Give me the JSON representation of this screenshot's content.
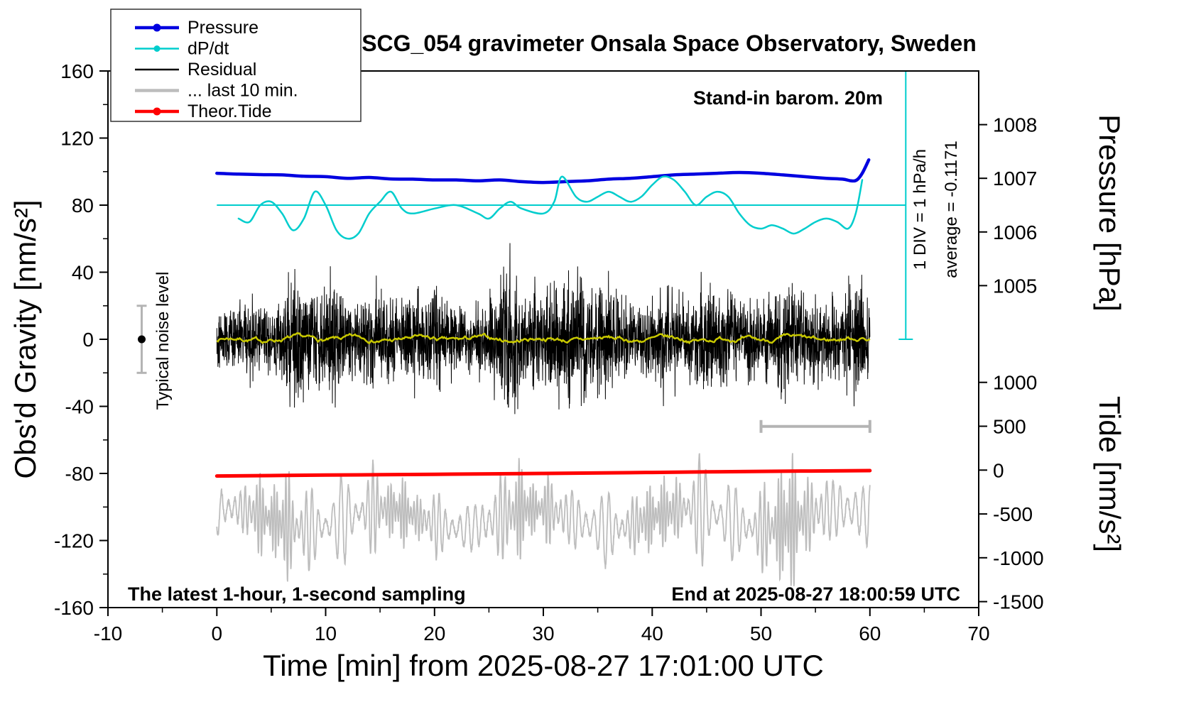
{
  "title": "SCG_054 gravimeter Onsala Space Observatory, Sweden",
  "annotations": {
    "barometer": "Stand-in barom. 20m",
    "div_scale": "1 DIV = 1 hPa/h",
    "average": "average = -0.1171",
    "noise_level": "Typical noise level",
    "sampling": "The latest 1-hour, 1-second sampling",
    "end_time": "End at 2025-08-27 18:00:59 UTC"
  },
  "legend": {
    "items": [
      {
        "label": "Pressure",
        "color": "#0000e0",
        "dot": true
      },
      {
        "label": "dP/dt",
        "color": "#00cdcd",
        "dot": true
      },
      {
        "label": "Residual",
        "color": "#000000",
        "dot": false
      },
      {
        "label": "... last 10 min.",
        "color": "#bdbdbd",
        "dot": false
      },
      {
        "label": "Theor.Tide",
        "color": "#ff0000",
        "dot": true
      }
    ]
  },
  "chart_data": {
    "type": "line",
    "title": "SCG_054 gravimeter Onsala Space Observatory, Sweden",
    "axes": {
      "x": {
        "label": "Time [min] from 2025-08-27 17:01:00 UTC",
        "min": -10,
        "max": 70,
        "ticks": [
          -10,
          0,
          10,
          20,
          30,
          40,
          50,
          60,
          70
        ],
        "minor_step": 5
      },
      "gravity": {
        "label": "Obs'd Gravity [nm/s²]",
        "min": -160,
        "max": 160,
        "ticks": [
          -160,
          -120,
          -80,
          -40,
          0,
          40,
          80,
          120,
          160
        ],
        "minor_step": 20
      },
      "pressure": {
        "label": "Pressure [hPa]",
        "ticks": [
          1005,
          1006,
          1007,
          1008
        ],
        "gravity_per_unit": 32,
        "unit_at_gravity_zero": 1004
      },
      "tide": {
        "label": "Tide [nm/s²]",
        "ticks": [
          1000,
          500,
          0,
          -500,
          -1000,
          -1500
        ],
        "gravity_per_unit": 0.0523,
        "gravity_at_zero": -78
      },
      "dpdt": {
        "average_hpa_per_h": -0.1171,
        "gravity_per_unit": 32,
        "gravity_at_zero": 83.747,
        "reference_gravity": 80
      }
    },
    "series": [
      {
        "name": "Pressure",
        "axis": "pressure",
        "color": "#0000e0",
        "width": 4.5,
        "smooth": true,
        "x": [
          0,
          2,
          4,
          6,
          8,
          10,
          12,
          14,
          16,
          18,
          20,
          22,
          24,
          26,
          28,
          30,
          32,
          34,
          36,
          38,
          40,
          42,
          44,
          46,
          48,
          50,
          52,
          54,
          56,
          57.5,
          58.3,
          58.8,
          59.3,
          59.9
        ],
        "y": [
          1007.094,
          1007.078,
          1007.069,
          1007.063,
          1007.038,
          1007.031,
          1007.0,
          1007.016,
          1006.988,
          1006.984,
          1006.969,
          1006.969,
          1006.953,
          1006.969,
          1006.938,
          1006.922,
          1006.938,
          1006.953,
          1006.984,
          1007.0,
          1007.031,
          1007.063,
          1007.078,
          1007.094,
          1007.109,
          1007.094,
          1007.063,
          1007.031,
          1007.0,
          1006.984,
          1006.953,
          1006.969,
          1007.094,
          1007.344
        ]
      },
      {
        "name": "dP/dt",
        "axis": "dpdt",
        "color": "#00cdcd",
        "width": 2.5,
        "smooth": true,
        "x": [
          2,
          3,
          4,
          5,
          6,
          7,
          8,
          9,
          10,
          11,
          12,
          13,
          14,
          15,
          16,
          17,
          18,
          20,
          22,
          24,
          25,
          26,
          27,
          28,
          30,
          31,
          31.7,
          33,
          34,
          35,
          36,
          37,
          38,
          39,
          40,
          41,
          42,
          43,
          44,
          45,
          46,
          47,
          48,
          49,
          50,
          51,
          52,
          53,
          54,
          55,
          56,
          57,
          58,
          58.7,
          59.3
        ],
        "y": [
          -0.367,
          -0.43,
          -0.117,
          -0.055,
          -0.273,
          -0.586,
          -0.367,
          0.133,
          -0.117,
          -0.586,
          -0.742,
          -0.648,
          -0.273,
          -0.055,
          0.133,
          -0.18,
          -0.273,
          -0.18,
          -0.117,
          -0.273,
          -0.367,
          -0.18,
          -0.055,
          -0.18,
          -0.273,
          -0.055,
          0.414,
          0.039,
          -0.055,
          0.039,
          0.133,
          0.039,
          -0.055,
          0.039,
          0.258,
          0.414,
          0.352,
          0.133,
          -0.117,
          0.039,
          0.133,
          0.039,
          -0.273,
          -0.492,
          -0.555,
          -0.492,
          -0.555,
          -0.648,
          -0.555,
          -0.43,
          -0.367,
          -0.43,
          -0.555,
          -0.273,
          0.352
        ]
      },
      {
        "name": "Residual",
        "axis": "gravity",
        "color": "#000000",
        "width": 1,
        "render": "noise",
        "seed": 42,
        "center": 0,
        "envelope_by_minute": [
          25,
          25,
          28,
          35,
          30,
          26,
          45,
          60,
          40,
          35,
          45,
          52,
          30,
          35,
          42,
          45,
          35,
          30,
          40,
          35,
          45,
          35,
          30,
          26,
          30,
          35,
          45,
          65,
          40,
          35,
          40,
          45,
          60,
          50,
          55,
          42,
          48,
          36,
          30,
          30,
          35,
          45,
          40,
          32,
          42,
          45,
          40,
          35,
          30,
          35,
          32,
          36,
          48,
          36,
          40,
          36,
          30,
          36,
          42,
          55,
          40
        ]
      },
      {
        "name": "Residual filtered",
        "axis": "gravity",
        "color": "#c8c800",
        "width": 2.5,
        "render": "smooth_noise",
        "seed": 7,
        "center": 0,
        "amplitude": 3
      },
      {
        "name": "... last 10 min.",
        "axis": "gravity",
        "color": "#bdbdbd",
        "width": 1.8,
        "render": "oscillation",
        "seed": 13,
        "center": -107,
        "period_min": 0.6,
        "envelope_by_minute": [
          22,
          20,
          18,
          25,
          30,
          28,
          35,
          38,
          30,
          26,
          24,
          30,
          26,
          22,
          28,
          30,
          26,
          22,
          20,
          22,
          24,
          22,
          20,
          18,
          22,
          26,
          38,
          42,
          30,
          24,
          22,
          26,
          25,
          24,
          26,
          28,
          25,
          22,
          20,
          24,
          30,
          26,
          22,
          24,
          32,
          35,
          30,
          28,
          24,
          22,
          26,
          40,
          48,
          45,
          35,
          28,
          25,
          30,
          28,
          26,
          28
        ]
      },
      {
        "name": "Theor.Tide",
        "axis": "tide",
        "color": "#ff0000",
        "width": 5,
        "smooth": true,
        "x": [
          0,
          10,
          20,
          30,
          40,
          50,
          60
        ],
        "y": [
          -67,
          -57,
          -48,
          -38,
          -27,
          -15,
          -6
        ]
      }
    ],
    "markers": {
      "dpdt_reference": {
        "gravity": 80,
        "x_start": 0,
        "x_end": 63.3,
        "color": "#00cdcd"
      },
      "dpdt_scale_bar": {
        "x": 63.3,
        "gravity_top": 160,
        "gravity_bottom": 0,
        "color": "#00cdcd"
      },
      "noise_bar": {
        "x": -6.9,
        "gravity_center": 0,
        "gravity_half_range": 20,
        "bar_color": "#b4b4b4",
        "dot_color": "#000000"
      },
      "last10_bracket": {
        "x_start": 50,
        "x_end": 60,
        "gravity": -52,
        "color": "#b4b4b4"
      }
    }
  }
}
